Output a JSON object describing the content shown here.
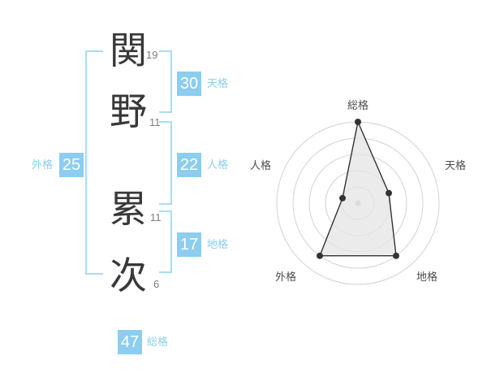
{
  "name": {
    "characters": [
      {
        "char": "関",
        "strokes": "19"
      },
      {
        "char": "野",
        "strokes": "11"
      },
      {
        "char": "累",
        "strokes": "11"
      },
      {
        "char": "次",
        "strokes": "6"
      }
    ]
  },
  "badges": {
    "tenkaku": {
      "value": "30",
      "label": "天格"
    },
    "jinkaku": {
      "value": "22",
      "label": "人格"
    },
    "chikaku": {
      "value": "17",
      "label": "地格"
    },
    "gaikaku": {
      "value": "25",
      "label": "外格"
    },
    "soukaku": {
      "value": "47",
      "label": "総格"
    }
  },
  "colors": {
    "accent_blue": "#8ccdf0",
    "bracket_blue": "#a9dcf5",
    "kanji_text": "#383838",
    "stroke_number_gray": "#7d7d7d",
    "radar_line": "#333333",
    "radar_ring": "#d2d2d2",
    "radar_label": "#4d4d4d"
  },
  "chart_data": {
    "type": "radar",
    "title": "",
    "axes": [
      "総格",
      "天格",
      "地格",
      "外格",
      "人格"
    ],
    "values": [
      5,
      2,
      4,
      4,
      1
    ],
    "scale_max": 5,
    "rings": 5,
    "grid": "concentric-circles",
    "legend": false
  }
}
